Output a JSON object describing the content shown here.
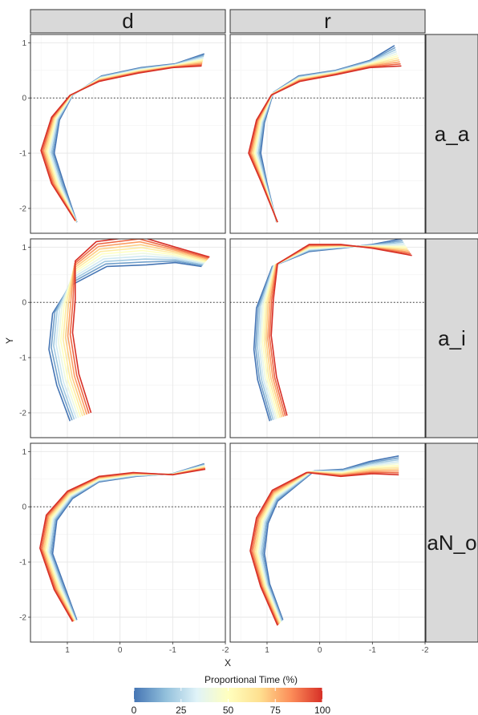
{
  "chart_data": {
    "type": "line",
    "facet_columns": [
      "d",
      "r"
    ],
    "facet_rows": [
      "a_a",
      "a_i",
      "aN_o"
    ],
    "xlabel": "X",
    "ylabel": "Y",
    "x_ticks": [
      1,
      0,
      -1,
      -2
    ],
    "y_ticks": [
      1,
      0,
      -1,
      -2
    ],
    "xlim": [
      1.7,
      -2.0
    ],
    "ylim": [
      -2.45,
      1.15
    ],
    "x_reversed": true,
    "reference_line_y": 0,
    "grid": true,
    "legend": {
      "title": "Proportional Time (%)",
      "ticks": [
        0,
        25,
        50,
        75,
        100
      ],
      "colors": [
        "#4575b4",
        "#91bfdb",
        "#e0f3f8",
        "#ffffbf",
        "#fee090",
        "#fc8d59",
        "#d73027"
      ],
      "placement": "bottom"
    },
    "colormap": "RdYlBu_reversed",
    "time_points": [
      0,
      10,
      20,
      30,
      40,
      50,
      60,
      70,
      80,
      90,
      100
    ],
    "panels": [
      {
        "col": "d",
        "row": "a_a",
        "start": [
          [
            0.82,
            -2.25
          ],
          [
            1.05,
            -1.6
          ],
          [
            1.25,
            -1.0
          ],
          [
            1.15,
            -0.4
          ],
          [
            0.9,
            0.05
          ],
          [
            0.35,
            0.4
          ],
          [
            -0.4,
            0.55
          ],
          [
            -1.05,
            0.62
          ],
          [
            -1.6,
            0.8
          ]
        ],
        "end": [
          [
            0.85,
            -2.22
          ],
          [
            1.3,
            -1.55
          ],
          [
            1.5,
            -0.95
          ],
          [
            1.3,
            -0.35
          ],
          [
            0.95,
            0.05
          ],
          [
            0.4,
            0.3
          ],
          [
            -0.35,
            0.45
          ],
          [
            -1.0,
            0.55
          ],
          [
            -1.55,
            0.58
          ]
        ]
      },
      {
        "col": "r",
        "row": "a_a",
        "start": [
          [
            0.82,
            -2.25
          ],
          [
            1.0,
            -1.55
          ],
          [
            1.12,
            -1.0
          ],
          [
            1.05,
            -0.45
          ],
          [
            0.88,
            0.1
          ],
          [
            0.4,
            0.4
          ],
          [
            -0.3,
            0.5
          ],
          [
            -0.95,
            0.68
          ],
          [
            -1.42,
            0.95
          ]
        ],
        "end": [
          [
            0.8,
            -2.25
          ],
          [
            1.12,
            -1.5
          ],
          [
            1.35,
            -1.0
          ],
          [
            1.2,
            -0.4
          ],
          [
            0.92,
            0.05
          ],
          [
            0.38,
            0.3
          ],
          [
            -0.3,
            0.42
          ],
          [
            -0.95,
            0.55
          ],
          [
            -1.55,
            0.58
          ]
        ]
      },
      {
        "col": "d",
        "row": "a_i",
        "start": [
          [
            0.95,
            -2.15
          ],
          [
            1.2,
            -1.5
          ],
          [
            1.35,
            -0.85
          ],
          [
            1.28,
            -0.2
          ],
          [
            0.95,
            0.3
          ],
          [
            0.25,
            0.65
          ],
          [
            -0.5,
            0.68
          ],
          [
            -1.05,
            0.72
          ],
          [
            -1.55,
            0.65
          ]
        ],
        "end": [
          [
            0.55,
            -2.0
          ],
          [
            0.78,
            -1.3
          ],
          [
            0.9,
            -0.55
          ],
          [
            0.85,
            0.05
          ],
          [
            0.85,
            0.75
          ],
          [
            0.45,
            1.1
          ],
          [
            -0.35,
            1.2
          ],
          [
            -1.05,
            1.0
          ],
          [
            -1.7,
            0.82
          ]
        ]
      },
      {
        "col": "r",
        "row": "a_i",
        "start": [
          [
            0.95,
            -2.15
          ],
          [
            1.18,
            -1.4
          ],
          [
            1.25,
            -0.85
          ],
          [
            1.2,
            -0.1
          ],
          [
            0.9,
            0.65
          ],
          [
            0.2,
            0.92
          ],
          [
            -0.4,
            0.98
          ],
          [
            -1.0,
            1.05
          ],
          [
            -1.55,
            1.15
          ]
        ],
        "end": [
          [
            0.62,
            -2.05
          ],
          [
            0.82,
            -1.35
          ],
          [
            0.92,
            -0.6
          ],
          [
            0.88,
            0.05
          ],
          [
            0.8,
            0.7
          ],
          [
            0.2,
            1.05
          ],
          [
            -0.4,
            1.05
          ],
          [
            -1.0,
            0.98
          ],
          [
            -1.75,
            0.85
          ]
        ]
      },
      {
        "col": "d",
        "row": "aN_o",
        "start": [
          [
            0.82,
            -2.05
          ],
          [
            1.05,
            -1.45
          ],
          [
            1.28,
            -0.85
          ],
          [
            1.2,
            -0.25
          ],
          [
            0.9,
            0.15
          ],
          [
            0.4,
            0.45
          ],
          [
            -0.3,
            0.55
          ],
          [
            -1.0,
            0.6
          ],
          [
            -1.6,
            0.78
          ]
        ],
        "end": [
          [
            0.9,
            -2.08
          ],
          [
            1.25,
            -1.5
          ],
          [
            1.52,
            -0.75
          ],
          [
            1.4,
            -0.15
          ],
          [
            1.0,
            0.28
          ],
          [
            0.4,
            0.55
          ],
          [
            -0.25,
            0.62
          ],
          [
            -1.0,
            0.58
          ],
          [
            -1.62,
            0.68
          ]
        ]
      },
      {
        "col": "r",
        "row": "aN_o",
        "start": [
          [
            0.7,
            -2.05
          ],
          [
            0.95,
            -1.4
          ],
          [
            1.05,
            -0.85
          ],
          [
            0.98,
            -0.3
          ],
          [
            0.8,
            0.1
          ],
          [
            0.1,
            0.65
          ],
          [
            -0.45,
            0.68
          ],
          [
            -0.95,
            0.82
          ],
          [
            -1.5,
            0.92
          ]
        ],
        "end": [
          [
            0.8,
            -2.15
          ],
          [
            1.12,
            -1.45
          ],
          [
            1.32,
            -0.8
          ],
          [
            1.2,
            -0.2
          ],
          [
            0.9,
            0.3
          ],
          [
            0.25,
            0.62
          ],
          [
            -0.4,
            0.55
          ],
          [
            -1.0,
            0.6
          ],
          [
            -1.5,
            0.58
          ]
        ]
      }
    ]
  }
}
